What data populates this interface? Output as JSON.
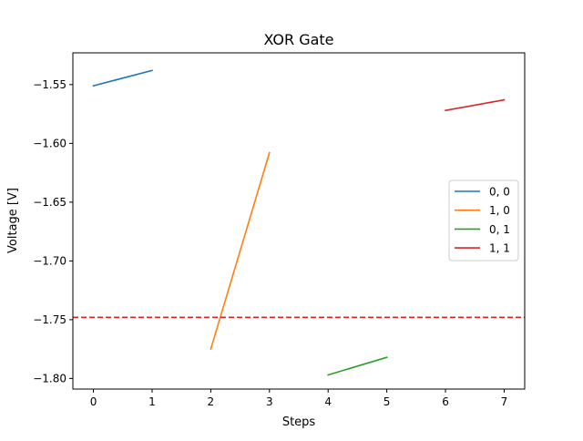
{
  "chart_data": {
    "type": "line",
    "title": "XOR Gate",
    "xlabel": "Steps",
    "ylabel": "Voltage [V]",
    "xlim": [
      -0.35,
      7.35
    ],
    "ylim": [
      -1.809,
      -1.523
    ],
    "xticks": [
      0,
      1,
      2,
      3,
      4,
      5,
      6,
      7
    ],
    "xtick_labels": [
      "0",
      "1",
      "2",
      "3",
      "4",
      "5",
      "6",
      "7"
    ],
    "yticks": [
      -1.55,
      -1.6,
      -1.65,
      -1.7,
      -1.75,
      -1.8
    ],
    "ytick_labels": [
      "−1.55",
      "−1.60",
      "−1.65",
      "−1.70",
      "−1.75",
      "−1.80"
    ],
    "grid": false,
    "legend_position": "center-right",
    "series": [
      {
        "name": "0, 0",
        "color": "#1f77b4",
        "x": [
          0,
          1
        ],
        "y": [
          -1.551,
          -1.538
        ]
      },
      {
        "name": "1, 0",
        "color": "#ff7f0e",
        "x": [
          2,
          3
        ],
        "y": [
          -1.775,
          -1.608
        ]
      },
      {
        "name": "0, 1",
        "color": "#2ca02c",
        "x": [
          4,
          5
        ],
        "y": [
          -1.797,
          -1.782
        ]
      },
      {
        "name": "1, 1",
        "color": "#d62728",
        "x": [
          6,
          7
        ],
        "y": [
          -1.572,
          -1.563
        ]
      }
    ],
    "threshold": {
      "y": -1.748,
      "color": "#d62728",
      "style": "dashed"
    }
  }
}
